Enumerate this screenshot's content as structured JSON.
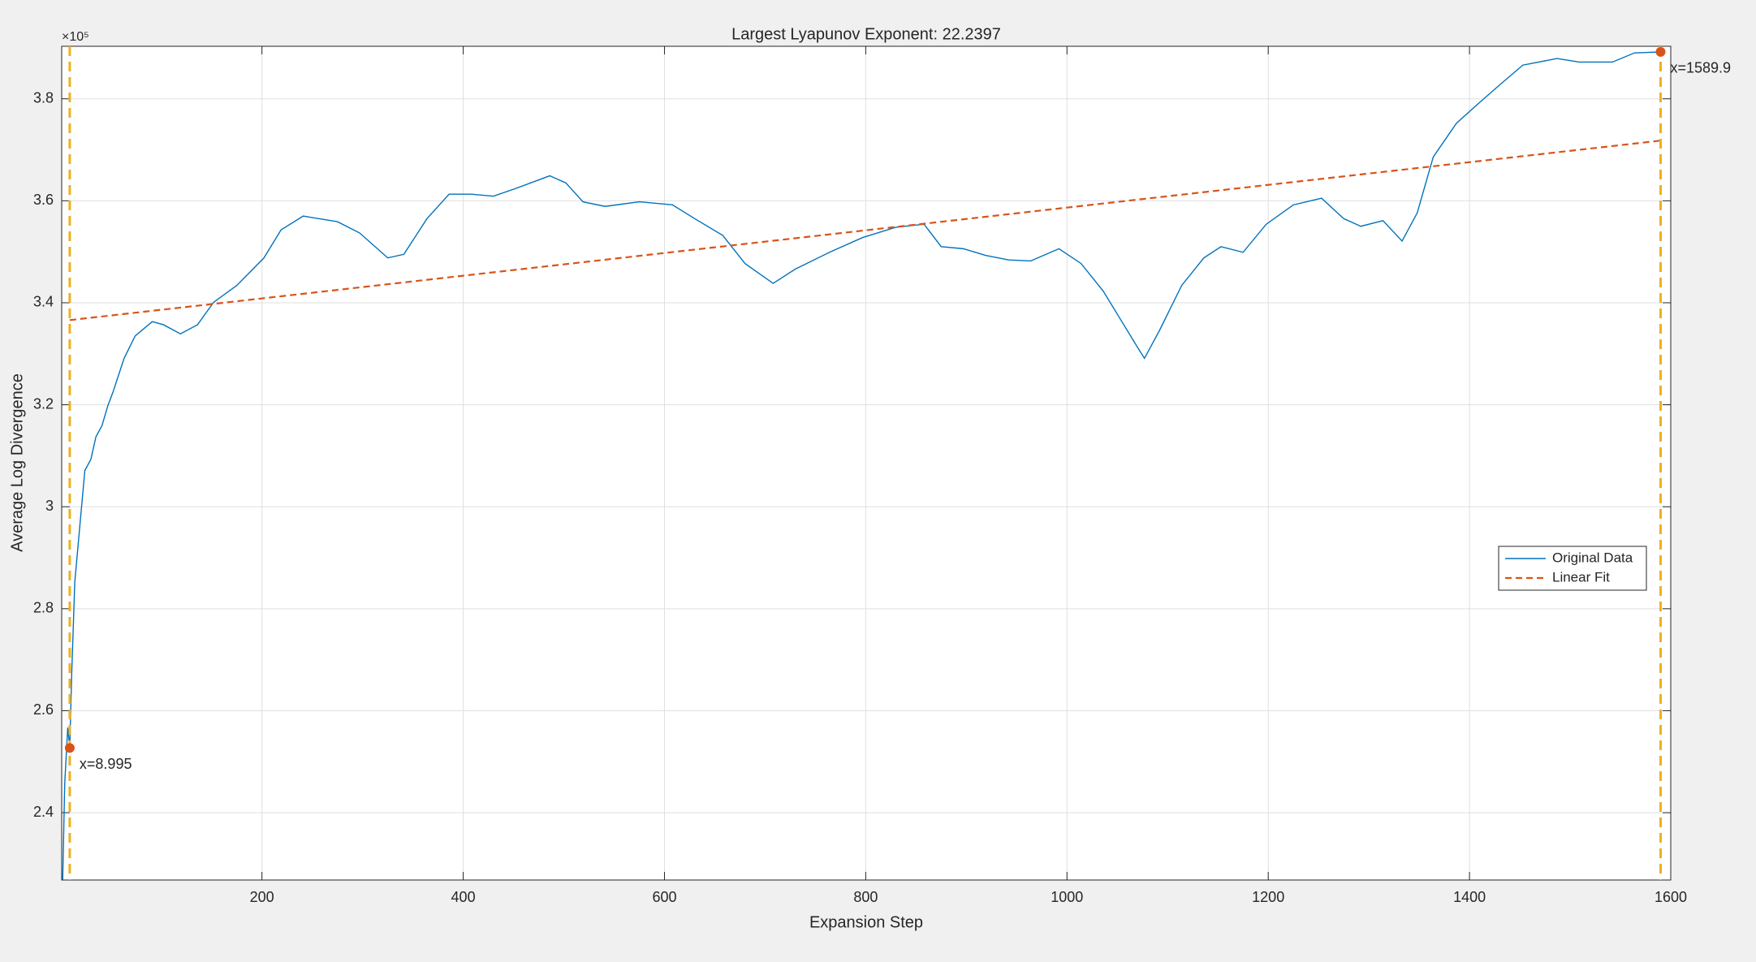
{
  "chart_data": {
    "type": "line",
    "title": "Largest Lyapunov Exponent: 22.2397",
    "x_label": "Expansion Step",
    "y_label": "Average Log Divergence",
    "y_exponent_label": "×10⁵",
    "xlim": [
      1,
      1600
    ],
    "xticks": [
      200,
      400,
      600,
      800,
      1000,
      1200,
      1400,
      1600
    ],
    "ylim": [
      2.268,
      3.903
    ],
    "yticks": [
      2.4,
      2.6,
      2.8,
      3,
      3.2,
      3.4,
      3.6,
      3.8
    ],
    "grid": true,
    "legend": "right",
    "series": [
      {
        "name": "Original Data",
        "color": "#0072BD",
        "dash": false,
        "x": [
          2,
          4,
          7,
          9,
          11,
          14,
          19,
          24,
          30,
          35,
          41,
          47,
          52,
          63,
          74,
          91,
          102,
          119,
          136,
          152,
          175,
          202,
          219,
          241,
          275,
          297,
          325,
          341,
          364,
          386,
          408,
          430,
          452,
          486,
          502,
          519,
          541,
          575,
          608,
          630,
          658,
          680,
          708,
          730,
          764,
          797,
          830,
          858,
          875,
          897,
          919,
          942,
          964,
          992,
          1014,
          1036,
          1053,
          1070,
          1077,
          1092,
          1114,
          1136,
          1153,
          1175,
          1198,
          1225,
          1253,
          1275,
          1292,
          1314,
          1333,
          1348,
          1364,
          1387,
          1409,
          1431,
          1453,
          1487,
          1509,
          1542,
          1564,
          1592
        ],
        "values": [
          2.268,
          2.457,
          2.567,
          2.527,
          2.676,
          2.852,
          2.962,
          3.071,
          3.093,
          3.137,
          3.159,
          3.199,
          3.225,
          3.291,
          3.335,
          3.363,
          3.357,
          3.339,
          3.357,
          3.401,
          3.434,
          3.488,
          3.543,
          3.57,
          3.559,
          3.537,
          3.488,
          3.495,
          3.565,
          3.613,
          3.613,
          3.609,
          3.624,
          3.649,
          3.635,
          3.598,
          3.589,
          3.598,
          3.592,
          3.565,
          3.532,
          3.477,
          3.438,
          3.466,
          3.499,
          3.528,
          3.548,
          3.554,
          3.51,
          3.506,
          3.493,
          3.484,
          3.482,
          3.506,
          3.477,
          3.423,
          3.368,
          3.313,
          3.291,
          3.346,
          3.434,
          3.488,
          3.51,
          3.499,
          3.554,
          3.592,
          3.605,
          3.565,
          3.55,
          3.561,
          3.521,
          3.576,
          3.686,
          3.752,
          3.791,
          3.829,
          3.866,
          3.879,
          3.872,
          3.872,
          3.89,
          3.892
        ]
      },
      {
        "name": "Linear Fit",
        "color": "#D95319",
        "dash": true,
        "x": [
          8.995,
          1589.9
        ],
        "values": [
          3.366,
          3.718
        ]
      }
    ],
    "annotation_color": "#EDB120",
    "annotations": [
      {
        "x": 8.995,
        "y": 2.527,
        "label": "x=8.995"
      },
      {
        "x": 1589.9,
        "y": 3.892,
        "label": "x=1589.9"
      }
    ]
  }
}
